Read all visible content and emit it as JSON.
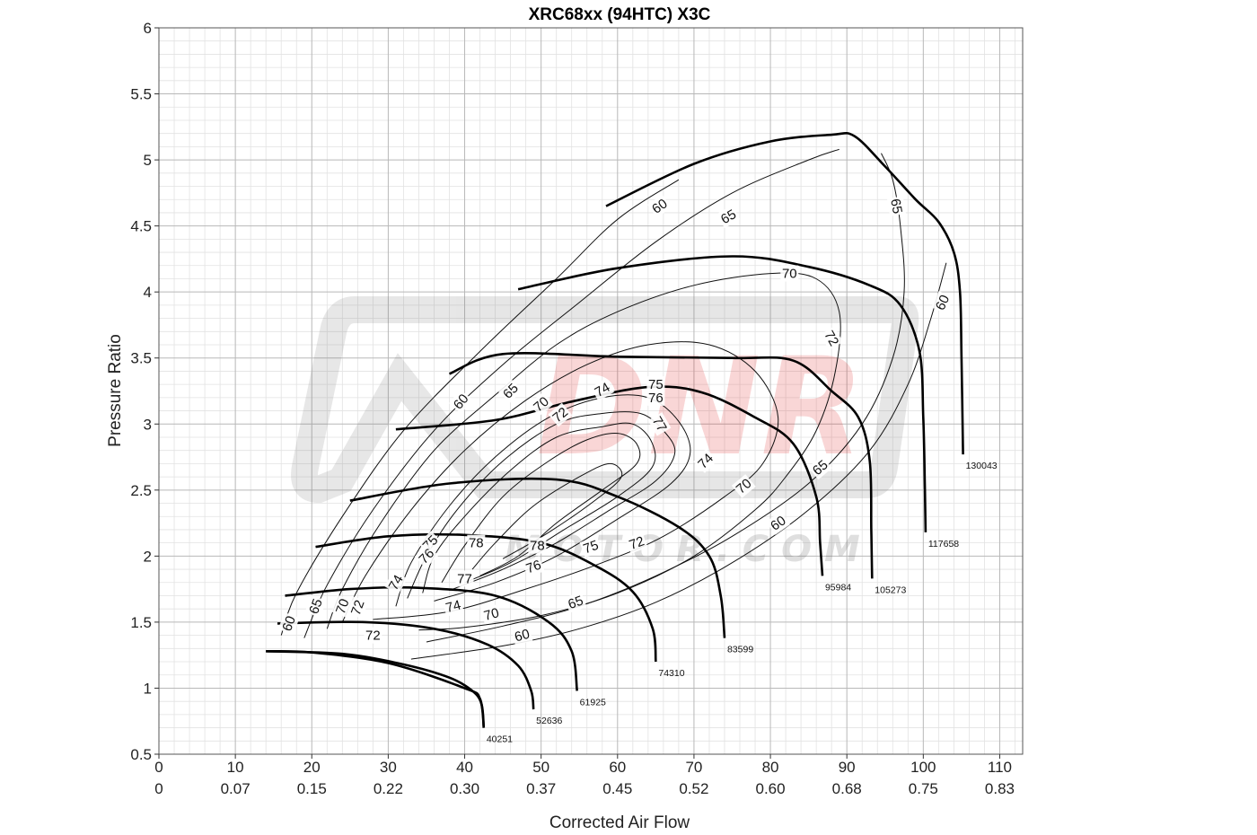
{
  "chart_data": {
    "type": "line",
    "title": "XRC68xx (94HTC) X3C",
    "xlabel": "Corrected Air Flow",
    "ylabel": "Pressure Ratio",
    "xlim": [
      0,
      113
    ],
    "ylim": [
      0.5,
      6
    ],
    "grid": true,
    "x_ticks_primary": [
      "0",
      "10",
      "20",
      "30",
      "40",
      "50",
      "60",
      "70",
      "80",
      "90",
      "100",
      "110"
    ],
    "x_ticks_secondary": [
      "0",
      "0.07",
      "0.15",
      "0.22",
      "0.30",
      "0.37",
      "0.45",
      "0.52",
      "0.60",
      "0.68",
      "0.75",
      "0.83"
    ],
    "y_ticks": [
      "0.5",
      "1",
      "1.5",
      "2",
      "2.5",
      "3",
      "3.5",
      "4",
      "4.5",
      "5",
      "5.5",
      "6"
    ],
    "watermark": {
      "text": "DNR",
      "subtext": "M O T O R . C O M",
      "color": "#e02020"
    },
    "surge_line": [
      [
        42.5,
        0.7
      ],
      [
        42,
        0.92
      ],
      [
        40,
        1.0
      ],
      [
        30,
        1.19
      ],
      [
        20,
        1.27
      ],
      [
        14,
        1.28
      ]
    ],
    "speed_lines": [
      {
        "name": "40251",
        "points": [
          [
            14,
            1.28
          ],
          [
            24,
            1.26
          ],
          [
            32,
            1.18
          ],
          [
            38,
            1.08
          ],
          [
            41,
            0.98
          ],
          [
            42.2,
            0.88
          ],
          [
            42.5,
            0.7
          ]
        ]
      },
      {
        "name": "52636",
        "points": [
          [
            15.5,
            1.49
          ],
          [
            27,
            1.5
          ],
          [
            36,
            1.45
          ],
          [
            43,
            1.33
          ],
          [
            47,
            1.17
          ],
          [
            48.7,
            0.98
          ],
          [
            49,
            0.84
          ]
        ]
      },
      {
        "name": "61925",
        "points": [
          [
            16.5,
            1.7
          ],
          [
            25,
            1.75
          ],
          [
            34,
            1.76
          ],
          [
            44,
            1.7
          ],
          [
            51,
            1.5
          ],
          [
            54,
            1.28
          ],
          [
            54.7,
            0.98
          ]
        ]
      },
      {
        "name": "74310",
        "points": [
          [
            20.5,
            2.07
          ],
          [
            30,
            2.15
          ],
          [
            40,
            2.16
          ],
          [
            50,
            2.1
          ],
          [
            57,
            1.93
          ],
          [
            62,
            1.73
          ],
          [
            64.6,
            1.45
          ],
          [
            65,
            1.2
          ]
        ]
      },
      {
        "name": "83599",
        "points": [
          [
            25,
            2.42
          ],
          [
            38,
            2.55
          ],
          [
            52,
            2.58
          ],
          [
            60,
            2.45
          ],
          [
            68,
            2.22
          ],
          [
            72,
            2.0
          ],
          [
            73.5,
            1.7
          ],
          [
            74,
            1.38
          ]
        ]
      },
      {
        "name": "95984",
        "points": [
          [
            31,
            2.96
          ],
          [
            44,
            3.03
          ],
          [
            54,
            3.17
          ],
          [
            64,
            3.28
          ],
          [
            71,
            3.24
          ],
          [
            78,
            3.05
          ],
          [
            83,
            2.85
          ],
          [
            86,
            2.45
          ],
          [
            86.5,
            2.1
          ],
          [
            86.8,
            1.85
          ]
        ]
      },
      {
        "name": "105273",
        "points": [
          [
            38,
            3.38
          ],
          [
            45,
            3.53
          ],
          [
            60,
            3.51
          ],
          [
            75,
            3.5
          ],
          [
            83,
            3.48
          ],
          [
            88,
            3.25
          ],
          [
            91.5,
            3.05
          ],
          [
            93,
            2.72
          ],
          [
            93.2,
            2.2
          ],
          [
            93.3,
            1.83
          ]
        ]
      },
      {
        "name": "117658",
        "points": [
          [
            47,
            4.02
          ],
          [
            60,
            4.18
          ],
          [
            75,
            4.27
          ],
          [
            85,
            4.19
          ],
          [
            93,
            4.05
          ],
          [
            97,
            3.9
          ],
          [
            99.5,
            3.55
          ],
          [
            100,
            3.05
          ],
          [
            100.2,
            2.55
          ],
          [
            100.3,
            2.18
          ]
        ]
      },
      {
        "name": "130043",
        "points": [
          [
            58.5,
            4.65
          ],
          [
            70,
            4.97
          ],
          [
            80,
            5.14
          ],
          [
            88,
            5.19
          ],
          [
            91,
            5.18
          ],
          [
            95,
            4.95
          ],
          [
            99,
            4.7
          ],
          [
            102,
            4.53
          ],
          [
            104,
            4.3
          ],
          [
            104.8,
            4.0
          ],
          [
            105,
            3.5
          ],
          [
            105.2,
            2.77
          ]
        ]
      }
    ],
    "efficiency_contours": [
      {
        "level": "60",
        "points": [
          [
            16,
            1.4
          ],
          [
            18,
            1.72
          ],
          [
            24,
            2.3
          ],
          [
            32,
            2.95
          ],
          [
            42,
            3.55
          ],
          [
            52,
            4.1
          ],
          [
            60,
            4.55
          ],
          [
            68,
            4.85
          ]
        ]
      },
      {
        "name_note": "",
        "level": "60",
        "points": [
          [
            33,
            1.22
          ],
          [
            45,
            1.32
          ],
          [
            55,
            1.45
          ],
          [
            65,
            1.65
          ],
          [
            75,
            1.95
          ],
          [
            85,
            2.35
          ],
          [
            93,
            2.8
          ],
          [
            98,
            3.3
          ],
          [
            101,
            3.8
          ],
          [
            103,
            4.22
          ]
        ]
      },
      {
        "level": "65",
        "points": [
          [
            19,
            1.38
          ],
          [
            22,
            1.78
          ],
          [
            28,
            2.35
          ],
          [
            36,
            2.95
          ],
          [
            45,
            3.45
          ],
          [
            55,
            3.92
          ],
          [
            65,
            4.38
          ],
          [
            75,
            4.75
          ],
          [
            85,
            5.0
          ],
          [
            89,
            5.08
          ]
        ]
      },
      {
        "level": "65",
        "points": [
          [
            35,
            1.35
          ],
          [
            45,
            1.47
          ],
          [
            55,
            1.62
          ],
          [
            65,
            1.85
          ],
          [
            75,
            2.15
          ],
          [
            85,
            2.55
          ],
          [
            92,
            3.0
          ],
          [
            96,
            3.5
          ],
          [
            97.5,
            4.0
          ],
          [
            97,
            4.5
          ],
          [
            96,
            4.85
          ],
          [
            94.5,
            5.05
          ]
        ]
      },
      {
        "level": "70",
        "points": [
          [
            22,
            1.45
          ],
          [
            24,
            1.75
          ],
          [
            29,
            2.25
          ],
          [
            36,
            2.8
          ],
          [
            44,
            3.22
          ],
          [
            52,
            3.6
          ],
          [
            60,
            3.85
          ],
          [
            70,
            4.05
          ],
          [
            80,
            4.14
          ],
          [
            86,
            4.1
          ],
          [
            89,
            3.85
          ],
          [
            88.5,
            3.4
          ],
          [
            86,
            2.95
          ],
          [
            82,
            2.6
          ],
          [
            78,
            2.35
          ],
          [
            70,
            2.0
          ],
          [
            60,
            1.72
          ],
          [
            50,
            1.55
          ],
          [
            40,
            1.46
          ],
          [
            34,
            1.44
          ]
        ]
      },
      {
        "level": "72",
        "points": [
          [
            24,
            1.5
          ],
          [
            27,
            1.85
          ],
          [
            33,
            2.35
          ],
          [
            40,
            2.8
          ],
          [
            48,
            3.18
          ],
          [
            56,
            3.45
          ],
          [
            64,
            3.6
          ],
          [
            72,
            3.6
          ],
          [
            78,
            3.4
          ],
          [
            81,
            3.05
          ],
          [
            79,
            2.7
          ],
          [
            74,
            2.45
          ],
          [
            66,
            2.15
          ],
          [
            58,
            1.95
          ],
          [
            48,
            1.75
          ],
          [
            38,
            1.58
          ],
          [
            28,
            1.52
          ]
        ]
      },
      {
        "level": "74",
        "points": [
          [
            31,
            1.62
          ],
          [
            33,
            1.95
          ],
          [
            38,
            2.38
          ],
          [
            44,
            2.75
          ],
          [
            51,
            3.05
          ],
          [
            58,
            3.2
          ],
          [
            64,
            3.2
          ],
          [
            68,
            3.02
          ],
          [
            69.5,
            2.78
          ],
          [
            67,
            2.55
          ],
          [
            60,
            2.28
          ],
          [
            52,
            2.0
          ],
          [
            44,
            1.8
          ],
          [
            36,
            1.66
          ]
        ]
      },
      {
        "level": "75",
        "points": [
          [
            32.5,
            1.68
          ],
          [
            35,
            2.0
          ],
          [
            39,
            2.35
          ],
          [
            45,
            2.72
          ],
          [
            52,
            3.0
          ],
          [
            58,
            3.08
          ],
          [
            63,
            3.08
          ],
          [
            66,
            2.95
          ],
          [
            67.5,
            2.78
          ],
          [
            65,
            2.57
          ],
          [
            59,
            2.35
          ],
          [
            52,
            2.1
          ],
          [
            45,
            1.9
          ],
          [
            38,
            1.74
          ]
        ]
      },
      {
        "level": "76",
        "points": [
          [
            34.5,
            1.72
          ],
          [
            36,
            2.0
          ],
          [
            40,
            2.3
          ],
          [
            46,
            2.65
          ],
          [
            52,
            2.9
          ],
          [
            58,
            2.98
          ],
          [
            62,
            3.0
          ],
          [
            64.5,
            2.86
          ],
          [
            64.5,
            2.67
          ],
          [
            60,
            2.45
          ],
          [
            53,
            2.2
          ],
          [
            46,
            1.95
          ],
          [
            40,
            1.8
          ]
        ]
      },
      {
        "level": "77",
        "points": [
          [
            37,
            1.8
          ],
          [
            40,
            2.08
          ],
          [
            45,
            2.45
          ],
          [
            51,
            2.72
          ],
          [
            56,
            2.88
          ],
          [
            60,
            2.93
          ],
          [
            62.5,
            2.85
          ],
          [
            62.5,
            2.7
          ],
          [
            58,
            2.5
          ],
          [
            52,
            2.25
          ],
          [
            47,
            2.0
          ],
          [
            42,
            1.85
          ]
        ]
      },
      {
        "level": "78",
        "points": [
          [
            41,
            1.9
          ],
          [
            44,
            2.1
          ],
          [
            49,
            2.38
          ],
          [
            55,
            2.6
          ],
          [
            59,
            2.7
          ],
          [
            60.5,
            2.6
          ],
          [
            57,
            2.42
          ],
          [
            51,
            2.18
          ],
          [
            45,
            1.98
          ]
        ]
      }
    ],
    "contour_labels": [
      {
        "text": "60",
        "x": 65.5,
        "y": 4.65,
        "rot": -35
      },
      {
        "text": "65",
        "x": 74.5,
        "y": 4.57,
        "rot": -30
      },
      {
        "text": "70",
        "x": 82.5,
        "y": 4.14,
        "rot": 0
      },
      {
        "text": "72",
        "x": 88,
        "y": 3.65,
        "rot": 60
      },
      {
        "text": "65",
        "x": 96.5,
        "y": 4.65,
        "rot": 80
      },
      {
        "text": "60",
        "x": 102.5,
        "y": 3.92,
        "rot": -65
      },
      {
        "text": "60",
        "x": 39.5,
        "y": 3.17,
        "rot": -50
      },
      {
        "text": "65",
        "x": 46,
        "y": 3.25,
        "rot": -45
      },
      {
        "text": "70",
        "x": 50,
        "y": 3.15,
        "rot": -40
      },
      {
        "text": "72",
        "x": 52.5,
        "y": 3.07,
        "rot": -40
      },
      {
        "text": "74",
        "x": 58,
        "y": 3.26,
        "rot": -30
      },
      {
        "text": "75",
        "x": 65,
        "y": 3.3,
        "rot": 0
      },
      {
        "text": "76",
        "x": 65,
        "y": 3.2,
        "rot": 0
      },
      {
        "text": "77",
        "x": 65.5,
        "y": 3.0,
        "rot": 60
      },
      {
        "text": "74",
        "x": 71.5,
        "y": 2.72,
        "rot": -45
      },
      {
        "text": "70",
        "x": 76.5,
        "y": 2.53,
        "rot": -40
      },
      {
        "text": "65",
        "x": 86.5,
        "y": 2.67,
        "rot": -40
      },
      {
        "text": "60",
        "x": 81,
        "y": 2.25,
        "rot": -35
      },
      {
        "text": "78",
        "x": 41.5,
        "y": 2.1,
        "rot": 0
      },
      {
        "text": "78",
        "x": 49.5,
        "y": 2.08,
        "rot": 0
      },
      {
        "text": "75",
        "x": 56.5,
        "y": 2.07,
        "rot": -20
      },
      {
        "text": "72",
        "x": 62.5,
        "y": 2.1,
        "rot": -20
      },
      {
        "text": "75",
        "x": 35.5,
        "y": 2.1,
        "rot": -45
      },
      {
        "text": "76",
        "x": 35,
        "y": 2.0,
        "rot": -45
      },
      {
        "text": "76",
        "x": 49,
        "y": 1.92,
        "rot": -20
      },
      {
        "text": "77",
        "x": 40,
        "y": 1.83,
        "rot": 0
      },
      {
        "text": "74",
        "x": 31,
        "y": 1.8,
        "rot": -60
      },
      {
        "text": "74",
        "x": 38.5,
        "y": 1.62,
        "rot": -15
      },
      {
        "text": "70",
        "x": 43.5,
        "y": 1.56,
        "rot": -15
      },
      {
        "text": "65",
        "x": 54.5,
        "y": 1.65,
        "rot": -20
      },
      {
        "text": "60",
        "x": 47.5,
        "y": 1.4,
        "rot": -15
      },
      {
        "text": "72",
        "x": 28,
        "y": 1.4,
        "rot": 0
      },
      {
        "text": "72",
        "x": 26,
        "y": 1.61,
        "rot": -70
      },
      {
        "text": "70",
        "x": 24,
        "y": 1.62,
        "rot": -70
      },
      {
        "text": "65",
        "x": 20.5,
        "y": 1.62,
        "rot": -70
      },
      {
        "text": "60",
        "x": 17,
        "y": 1.49,
        "rot": -70
      }
    ]
  }
}
